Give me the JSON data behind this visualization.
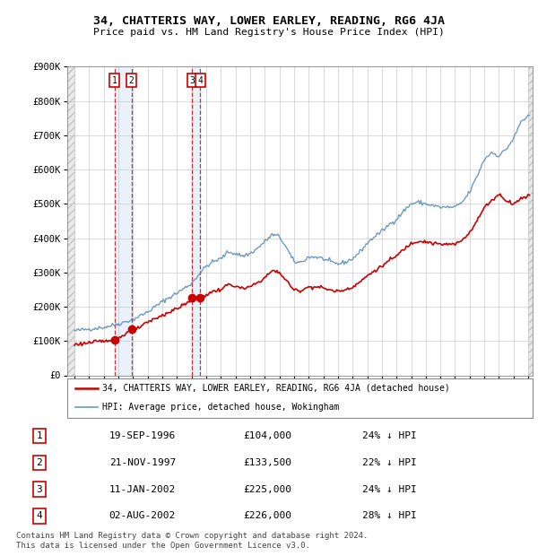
{
  "title": "34, CHATTERIS WAY, LOWER EARLEY, READING, RG6 4JA",
  "subtitle": "Price paid vs. HM Land Registry's House Price Index (HPI)",
  "transactions": [
    {
      "num": 1,
      "date": "19-SEP-1996",
      "date_val": 1996.72,
      "price": 104000,
      "pct": "24% ↓ HPI"
    },
    {
      "num": 2,
      "date": "21-NOV-1997",
      "date_val": 1997.89,
      "price": 133500,
      "pct": "22% ↓ HPI"
    },
    {
      "num": 3,
      "date": "11-JAN-2002",
      "date_val": 2002.03,
      "price": 225000,
      "pct": "24% ↓ HPI"
    },
    {
      "num": 4,
      "date": "02-AUG-2002",
      "date_val": 2002.59,
      "price": 226000,
      "pct": "28% ↓ HPI"
    }
  ],
  "ylim": [
    0,
    900000
  ],
  "xlim": [
    1993.5,
    2025.3
  ],
  "yticks": [
    0,
    100000,
    200000,
    300000,
    400000,
    500000,
    600000,
    700000,
    800000,
    900000
  ],
  "ytick_labels": [
    "£0",
    "£100K",
    "£200K",
    "£300K",
    "£400K",
    "£500K",
    "£600K",
    "£700K",
    "£800K",
    "£900K"
  ],
  "xticks": [
    1994,
    1995,
    1996,
    1997,
    1998,
    1999,
    2000,
    2001,
    2002,
    2003,
    2004,
    2005,
    2006,
    2007,
    2008,
    2009,
    2010,
    2011,
    2012,
    2013,
    2014,
    2015,
    2016,
    2017,
    2018,
    2019,
    2020,
    2021,
    2022,
    2023,
    2024,
    2025
  ],
  "hpi_color": "#5588bb",
  "price_color": "#cc0000",
  "grid_color": "#cccccc",
  "legend_label_price": "34, CHATTERIS WAY, LOWER EARLEY, READING, RG6 4JA (detached house)",
  "legend_label_hpi": "HPI: Average price, detached house, Wokingham",
  "table_rows": [
    [
      "1",
      "19-SEP-1996",
      "£104,000",
      "24% ↓ HPI"
    ],
    [
      "2",
      "21-NOV-1997",
      "£133,500",
      "22% ↓ HPI"
    ],
    [
      "3",
      "11-JAN-2002",
      "£225,000",
      "24% ↓ HPI"
    ],
    [
      "4",
      "02-AUG-2002",
      "£226,000",
      "28% ↓ HPI"
    ]
  ],
  "footer": "Contains HM Land Registry data © Crown copyright and database right 2024.\nThis data is licensed under the Open Government Licence v3.0."
}
